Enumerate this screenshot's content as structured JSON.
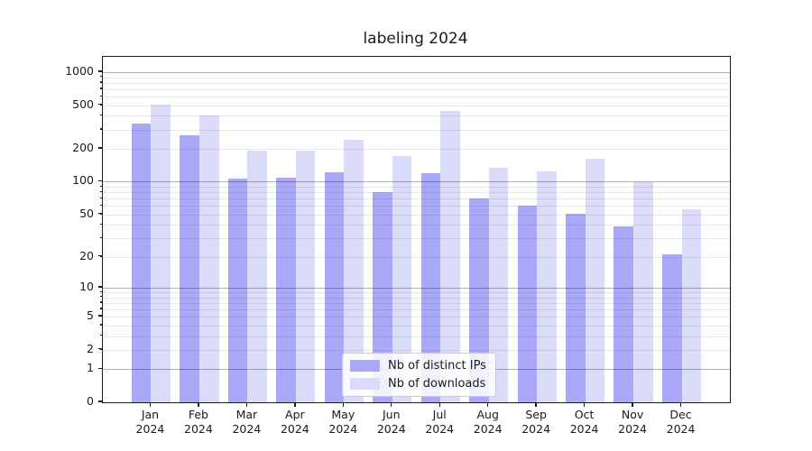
{
  "title": "labeling 2024",
  "legend": {
    "items": [
      {
        "label": "Nb of distinct IPs",
        "color": "#a9a9f7"
      },
      {
        "label": "Nb of downloads",
        "color": "#dbdbfa"
      }
    ],
    "position": "lower center"
  },
  "colors": {
    "series_dark": "#a9a9f7",
    "series_light": "#dbdbfa",
    "major_grid": "rgba(0,0,0,0.30)",
    "minor_grid": "rgba(0,0,0,0.085)",
    "axis": "#1a1a1a",
    "background": "#ffffff"
  },
  "chart_data": {
    "type": "bar",
    "title": "labeling 2024",
    "categories": [
      "Jan 2024",
      "Feb 2024",
      "Mar 2024",
      "Apr 2024",
      "May 2024",
      "Jun 2024",
      "Jul 2024",
      "Aug 2024",
      "Sep 2024",
      "Oct 2024",
      "Nov 2024",
      "Dec 2024"
    ],
    "x_tick_line1": [
      "Jan",
      "Feb",
      "Mar",
      "Apr",
      "May",
      "Jun",
      "Jul",
      "Aug",
      "Sep",
      "Oct",
      "Nov",
      "Dec"
    ],
    "x_tick_line2": [
      "2024",
      "2024",
      "2024",
      "2024",
      "2024",
      "2024",
      "2024",
      "2024",
      "2024",
      "2024",
      "2024",
      "2024"
    ],
    "series": [
      {
        "name": "Nb of distinct IPs",
        "color": "#a9a9f7",
        "values": [
          340,
          265,
          107,
          110,
          121,
          80,
          120,
          70,
          60,
          51,
          39,
          21
        ]
      },
      {
        "name": "Nb of downloads",
        "color": "#dbdbfa",
        "values": [
          505,
          400,
          193,
          194,
          243,
          172,
          440,
          134,
          124,
          162,
          100,
          56
        ]
      }
    ],
    "xlabel": "",
    "ylabel": "",
    "y_scale": "log10(1+v)",
    "ylim": [
      0,
      1378
    ],
    "y_ticks": [
      0,
      1,
      2,
      5,
      10,
      20,
      50,
      100,
      200,
      500,
      1000
    ],
    "y_major_gridlines": [
      1,
      10,
      100,
      1000
    ],
    "y_minor_gridlines": [
      2,
      3,
      4,
      5,
      6,
      7,
      8,
      9,
      20,
      30,
      40,
      50,
      60,
      70,
      80,
      90,
      200,
      300,
      400,
      500,
      600,
      700,
      800,
      900
    ],
    "grid": "horizontal major+minor, drawn over bars",
    "legend_position": "lower center"
  }
}
